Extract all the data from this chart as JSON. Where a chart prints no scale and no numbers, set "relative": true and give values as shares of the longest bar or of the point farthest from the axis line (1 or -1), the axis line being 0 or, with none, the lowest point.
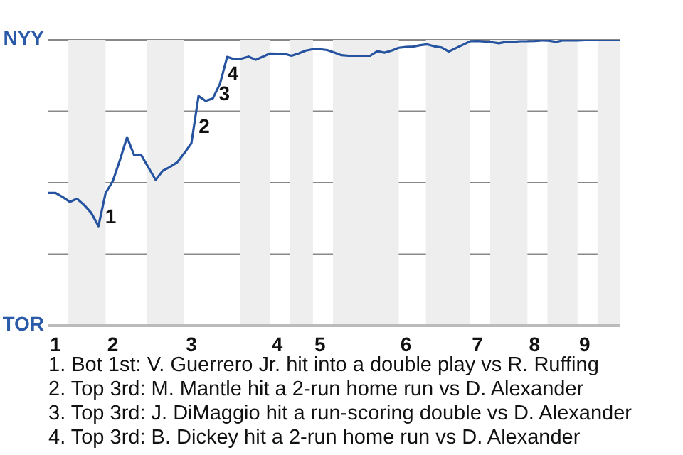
{
  "chart_data": {
    "type": "line",
    "relative": true,
    "categories": [
      null,
      "1",
      null,
      null,
      null,
      null,
      null,
      null,
      null,
      "2",
      null,
      null,
      null,
      null,
      null,
      null,
      null,
      null,
      null,
      null,
      "3",
      null,
      null,
      null,
      null,
      null,
      null,
      null,
      null,
      null,
      null,
      null,
      "4",
      null,
      null,
      null,
      null,
      null,
      "5",
      null,
      null,
      null,
      null,
      null,
      null,
      null,
      null,
      null,
      null,
      null,
      "6",
      null,
      null,
      null,
      null,
      null,
      null,
      null,
      null,
      null,
      "7",
      null,
      null,
      null,
      null,
      null,
      null,
      null,
      "8",
      null,
      null,
      null,
      null,
      null,
      null,
      "9",
      null,
      null,
      null,
      null,
      null
    ],
    "series": [
      {
        "color": "#2553a0",
        "values": [
          0.464,
          0.464,
          0.45,
          0.433,
          0.444,
          0.422,
          0.394,
          0.348,
          0.464,
          0.505,
          0.579,
          0.659,
          0.596,
          0.596,
          0.553,
          0.51,
          0.542,
          0.555,
          0.571,
          0.603,
          0.638,
          0.803,
          0.786,
          0.795,
          0.846,
          0.94,
          0.932,
          0.934,
          0.941,
          0.93,
          0.941,
          0.952,
          0.951,
          0.951,
          0.944,
          0.952,
          0.962,
          0.967,
          0.967,
          0.964,
          0.955,
          0.946,
          0.944,
          0.944,
          0.944,
          0.944,
          0.96,
          0.955,
          0.962,
          0.972,
          0.975,
          0.976,
          0.981,
          0.984,
          0.977,
          0.973,
          0.959,
          0.971,
          0.983,
          0.995,
          0.996,
          0.994,
          0.992,
          0.988,
          0.993,
          0.993,
          0.995,
          0.995,
          0.996,
          0.998,
          0.997,
          0.993,
          0.998,
          0.998,
          0.998,
          0.999,
          0.999,
          0.999,
          0.999,
          1,
          1
        ]
      }
    ],
    "grid": "y",
    "marker": "none",
    "line_style": "solid",
    "legend": false,
    "annotations": [
      "NYY",
      "TOR",
      "1",
      "2",
      "3",
      "4",
      "1. Bot 1st: V. Guerrero Jr. hit into a double play vs R. Ruffing",
      "2. Top 3rd: M. Mantle hit a 2-run home run vs D. Alexander",
      "3. Top 3rd: J. DiMaggio hit a run-scoring double vs D. Alexander",
      "4. Top 3rd: B. Dickey hit a 2-run home run vs D. Alexander"
    ]
  }
}
